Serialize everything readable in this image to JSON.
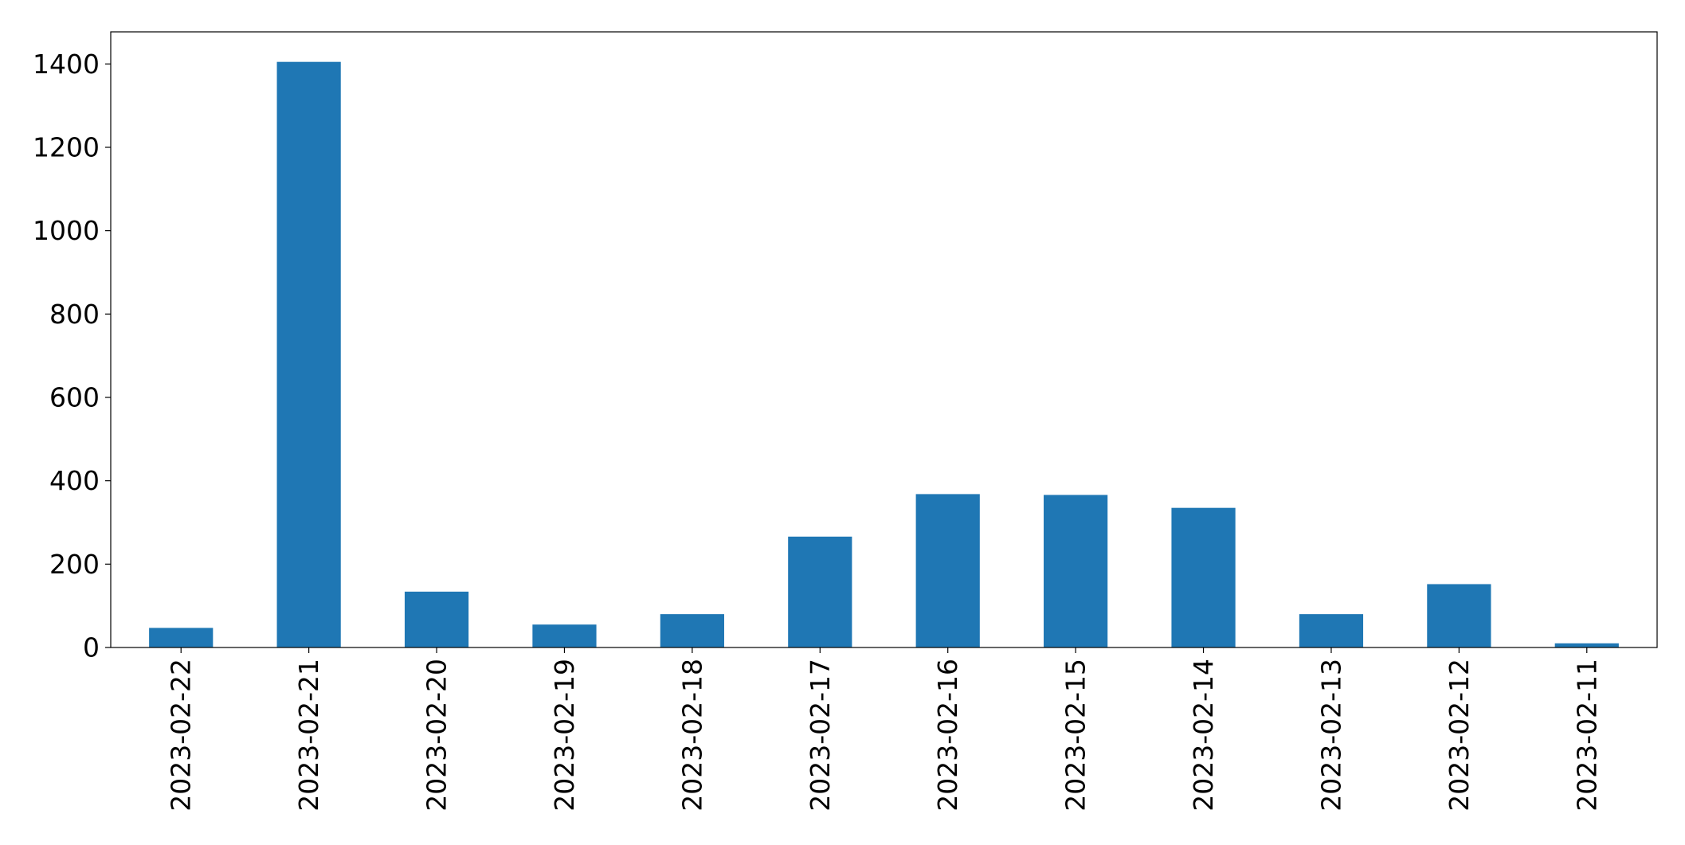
{
  "chart_data": {
    "type": "bar",
    "title": "",
    "xlabel": "",
    "ylabel": "",
    "categories": [
      "2023-02-22",
      "2023-02-21",
      "2023-02-20",
      "2023-02-19",
      "2023-02-18",
      "2023-02-17",
      "2023-02-16",
      "2023-02-15",
      "2023-02-14",
      "2023-02-13",
      "2023-02-12",
      "2023-02-11"
    ],
    "values": [
      47,
      1405,
      134,
      55,
      80,
      266,
      368,
      366,
      335,
      80,
      152,
      10
    ],
    "ylim": [
      0,
      1477
    ],
    "yticks": [
      0,
      200,
      400,
      600,
      800,
      1000,
      1200,
      1400
    ],
    "x_tick_rotation": "vertical",
    "grid": false,
    "legend": "none",
    "bar_color": "#1f77b4"
  }
}
